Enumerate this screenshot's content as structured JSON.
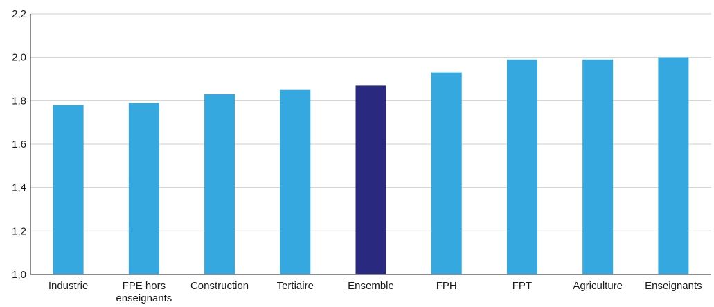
{
  "chart_data": {
    "type": "bar",
    "categories": [
      "Industrie",
      "FPE hors enseignants",
      "Construction",
      "Tertiaire",
      "Ensemble",
      "FPH",
      "FPT",
      "Agriculture",
      "Enseignants"
    ],
    "category_label_lines": [
      [
        "Industrie"
      ],
      [
        "FPE hors",
        "enseignants"
      ],
      [
        "Construction"
      ],
      [
        "Tertiaire"
      ],
      [
        "Ensemble"
      ],
      [
        "FPH"
      ],
      [
        "FPT"
      ],
      [
        "Agriculture"
      ],
      [
        "Enseignants"
      ]
    ],
    "values": [
      1.78,
      1.79,
      1.83,
      1.85,
      1.87,
      1.93,
      1.99,
      1.99,
      2.0
    ],
    "highlight_category": "Ensemble",
    "ylim": [
      1.0,
      2.2
    ],
    "yticks": [
      1.0,
      1.2,
      1.4,
      1.6,
      1.8,
      2.0,
      2.2
    ],
    "ytick_labels": [
      "1,0",
      "1,2",
      "1,4",
      "1,6",
      "1,8",
      "2,0",
      "2,2"
    ],
    "grid": true,
    "colors": {
      "bar": "#35a8e0",
      "highlight": "#292a7f",
      "grid": "#cfcfcf"
    }
  }
}
